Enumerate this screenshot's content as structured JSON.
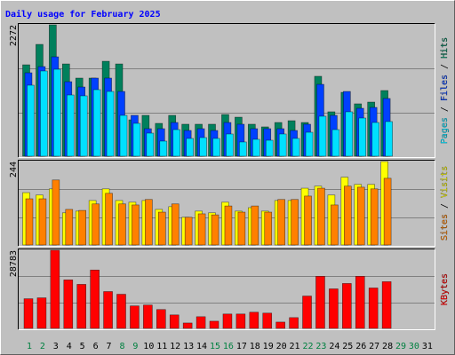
{
  "chart_data": {
    "type": "bar",
    "title": "Daily usage for February 2025",
    "categories": [
      "1",
      "2",
      "3",
      "4",
      "5",
      "6",
      "7",
      "8",
      "9",
      "10",
      "11",
      "12",
      "13",
      "14",
      "15",
      "16",
      "17",
      "18",
      "19",
      "20",
      "21",
      "22",
      "23",
      "24",
      "25",
      "26",
      "27",
      "28",
      "29",
      "30",
      "31"
    ],
    "category_colors": [
      "#008040",
      "#008040",
      "#000000",
      "#000000",
      "#000000",
      "#000000",
      "#000000",
      "#008040",
      "#008040",
      "#000000",
      "#000000",
      "#000000",
      "#000000",
      "#000000",
      "#008040",
      "#008040",
      "#000000",
      "#000000",
      "#000000",
      "#000000",
      "#000000",
      "#008040",
      "#008040",
      "#000000",
      "#000000",
      "#000000",
      "#000000",
      "#000000",
      "#008040",
      "#008040",
      "#000000"
    ],
    "legend_separator": " / ",
    "grid_divisions": 3,
    "panels": [
      {
        "ylim": [
          0,
          2272
        ],
        "yticks": [
          2272
        ],
        "legend_order": [
          2,
          1,
          0
        ],
        "series": [
          {
            "name": "Hits",
            "color": "#00805c",
            "values": [
              1581,
              1934,
              2272,
              1596,
              1351,
              1351,
              1642,
              1596,
              629,
              706,
              568,
              706,
              553,
              553,
              553,
              721,
              675,
              553,
              507,
              583,
              614,
              583,
              1382,
              768,
              1105,
              906,
              936,
              1136,
              null,
              null,
              null
            ]
          },
          {
            "name": "Files",
            "color": "#0040ff",
            "values": [
              1443,
              1550,
              1719,
              1289,
              1197,
              1351,
              1351,
              1120,
              706,
              476,
              476,
              583,
              445,
              476,
              445,
              583,
              553,
              476,
              476,
              476,
              445,
              553,
              1243,
              706,
              1120,
              829,
              844,
              998,
              null,
              null,
              null
            ]
          },
          {
            "name": "Pages",
            "color": "#00e0ff",
            "values": [
              1228,
              1474,
              1504,
              1059,
              1044,
              1151,
              1120,
              706,
              568,
              399,
              261,
              460,
              307,
              322,
              307,
              384,
              246,
              292,
              276,
              384,
              307,
              414,
              691,
              460,
              768,
              660,
              583,
              599,
              null,
              null,
              null
            ]
          }
        ]
      },
      {
        "ylim": [
          0,
          244
        ],
        "yticks": [
          244
        ],
        "legend_order": [
          1,
          0
        ],
        "series": [
          {
            "name": "Visits",
            "color": "#ffff00",
            "values": [
              153,
              146,
              164,
              94,
              99,
              130,
              164,
              130,
              125,
              130,
              104,
              112,
              81,
              99,
              94,
              125,
              99,
              109,
              99,
              130,
              130,
              166,
              172,
              146,
              198,
              177,
              177,
              244,
              null,
              null,
              null
            ]
          },
          {
            "name": "Sites",
            "color": "#ff8000",
            "values": [
              135,
              135,
              190,
              104,
              101,
              120,
              151,
              120,
              117,
              133,
              96,
              120,
              81,
              91,
              88,
              114,
              96,
              114,
              96,
              133,
              133,
              143,
              166,
              117,
              172,
              169,
              164,
              195,
              null,
              null,
              null
            ]
          }
        ]
      },
      {
        "ylim": [
          0,
          28783
        ],
        "yticks": [
          28783
        ],
        "legend_order": [
          0
        ],
        "series": [
          {
            "name": "KBytes",
            "color": "#ff0000",
            "values": [
              10923,
              11254,
              28783,
              17873,
              16218,
              21514,
              13571,
              12578,
              8275,
              8606,
              6951,
              4965,
              1986,
              4303,
              2648,
              5296,
              5296,
              5958,
              5627,
              2317,
              3972,
              11916,
              19198,
              14564,
              16550,
              19198,
              14895,
              17212,
              null,
              null,
              null
            ]
          }
        ]
      }
    ]
  }
}
